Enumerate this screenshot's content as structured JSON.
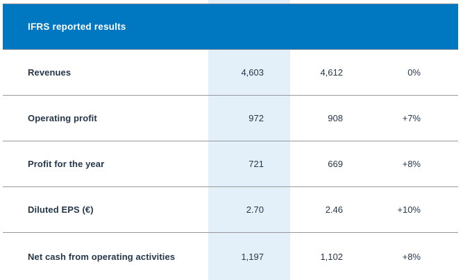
{
  "header": {
    "title": "IFRS reported results"
  },
  "table": {
    "rows": [
      {
        "label": "Revenues",
        "current": "4,603",
        "prior": "4,612",
        "change": "0%"
      },
      {
        "label": "Operating profit",
        "current": "972",
        "prior": "908",
        "change": "+7%"
      },
      {
        "label": "Profit for the year",
        "current": "721",
        "prior": "669",
        "change": "+8%"
      },
      {
        "label": "Diluted EPS (€)",
        "current": "2.70",
        "prior": "2.46",
        "change": "+10%"
      },
      {
        "label": "Net cash from operating activities",
        "current": "1,197",
        "prior": "1,102",
        "change": "+8%"
      }
    ]
  },
  "colors": {
    "header_blue": "#0078C1",
    "highlight_blue": "#E4F0F9",
    "divider_gray": "#98989B",
    "text_dark": "#25374B",
    "title_white": "#FFFFFF"
  }
}
